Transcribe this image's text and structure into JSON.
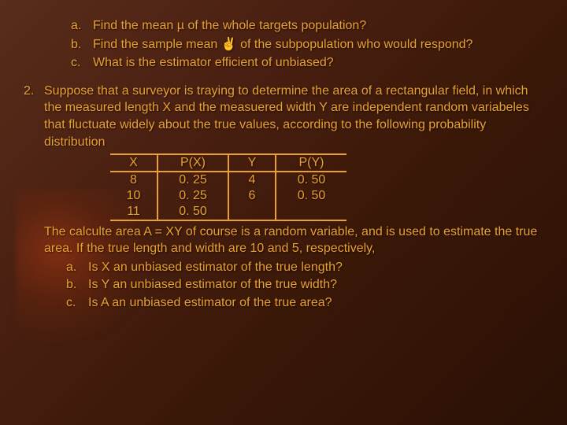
{
  "q1": {
    "a": {
      "marker": "a.",
      "text": "Find the mean µ of the whole targets population?"
    },
    "b": {
      "marker": "b.",
      "text": "Find the sample mean ✌ of the subpopulation who would respond?"
    },
    "c": {
      "marker": "c.",
      "text": "What is the estimator efficient of unbiased?"
    }
  },
  "q2": {
    "marker": "2.",
    "intro": "Suppose that a surveyor is traying to determine the area of a rectangular field, in which the measured length X and the measuered width Y are independent random variabeles that fluctuate widely about the true values, according to the following probability distribution",
    "table": {
      "headers": {
        "x": "X",
        "px": "P(X)",
        "y": "Y",
        "py": "P(Y)"
      },
      "rows": [
        {
          "x": "8",
          "px": "0. 25",
          "y": "4",
          "py": "0. 50"
        },
        {
          "x": "10",
          "px": "0. 25",
          "y": "6",
          "py": "0. 50"
        },
        {
          "x": "11",
          "px": "0. 50",
          "y": "",
          "py": ""
        }
      ],
      "border_color": "#e8a030"
    },
    "after": "The calculte area A = XY of course is a random variable, and is used to estimate the true area. If the true length and width are 10 and 5, respectively,",
    "subs": {
      "a": {
        "marker": "a.",
        "text": "Is X an unbiased estimator of the true length?"
      },
      "b": {
        "marker": "b.",
        "text": "Is Y an unbiased estimator of the true width?"
      },
      "c": {
        "marker": "c.",
        "text": "Is A an unbiased estimator of the true area?"
      }
    }
  },
  "style": {
    "text_color": "#e8a030",
    "background_gradient": [
      "#5a2d1a",
      "#4a2012",
      "#3a1808",
      "#2a1005"
    ],
    "font_family": "Verdana",
    "font_size_pt": 12
  }
}
